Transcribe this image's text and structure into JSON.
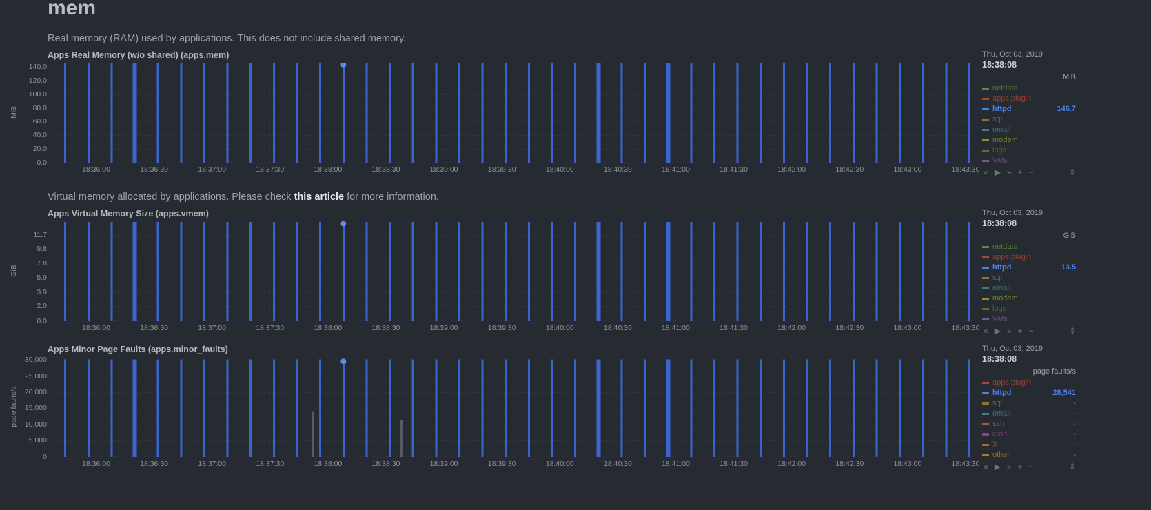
{
  "page": {
    "title": "mem"
  },
  "colors": {
    "background": "#262b31",
    "spike_blue": "#3d64ce",
    "selected_dot": "#5f8ce8",
    "grid": "#3a3f45",
    "axis_text": "#8f9398"
  },
  "x_axis": {
    "start": "18:35:37",
    "end": "18:43:35",
    "labels": [
      "18:36:00",
      "18:36:30",
      "18:37:00",
      "18:37:30",
      "18:38:00",
      "18:38:30",
      "18:39:00",
      "18:39:30",
      "18:40:00",
      "18:40:30",
      "18:41:00",
      "18:41:30",
      "18:42:00",
      "18:42:30",
      "18:43:00",
      "18:43:30"
    ],
    "wide_spike_times": [
      "18:36:20",
      "18:40:20",
      "18:40:56"
    ]
  },
  "selection": {
    "time": "18:38:08"
  },
  "toolbar": {
    "icons": [
      {
        "name": "pan-backward-icon",
        "glyph": "«"
      },
      {
        "name": "play-icon",
        "glyph": "▶"
      },
      {
        "name": "pan-forward-icon",
        "glyph": "»"
      },
      {
        "name": "zoom-in-icon",
        "glyph": "+"
      },
      {
        "name": "zoom-out-icon",
        "glyph": "−"
      }
    ],
    "resize": {
      "name": "resize-handle-icon",
      "glyph": "⇕"
    }
  },
  "chart_data": [
    {
      "type": "line",
      "title": "Apps Real Memory (w/o shared) (apps.mem)",
      "description": {
        "before": "Real memory (RAM) used by applications. This does not include shared memory.",
        "link": "",
        "after": ""
      },
      "unit": "MiB",
      "y_axis_label": "MiB",
      "y_max": 147,
      "y_ticks": [
        {
          "label": "140.0",
          "value": 140
        },
        {
          "label": "120.0",
          "value": 120
        },
        {
          "label": "100.0",
          "value": 100
        },
        {
          "label": "80.0",
          "value": 80
        },
        {
          "label": "60.0",
          "value": 60
        },
        {
          "label": "40.0",
          "value": 40
        },
        {
          "label": "20.0",
          "value": 20
        },
        {
          "label": "0.0",
          "value": 0
        }
      ],
      "date_label": "Thu, Oct 03, 2019",
      "time_label": "18:38:08",
      "series": [
        {
          "name": "httpd",
          "color": "#3d64ce",
          "baseline_value": 0,
          "peak_value": 146.7,
          "spike_times": [
            "18:35:44",
            "18:35:56",
            "18:36:08",
            "18:36:20",
            "18:36:32",
            "18:36:44",
            "18:36:56",
            "18:37:08",
            "18:37:20",
            "18:37:32",
            "18:37:44",
            "18:37:56",
            "18:38:08",
            "18:38:20",
            "18:38:32",
            "18:38:44",
            "18:38:56",
            "18:39:08",
            "18:39:20",
            "18:39:32",
            "18:39:44",
            "18:39:56",
            "18:40:08",
            "18:40:20",
            "18:40:32",
            "18:40:44",
            "18:40:56",
            "18:41:08",
            "18:41:20",
            "18:41:32",
            "18:41:44",
            "18:41:56",
            "18:42:08",
            "18:42:20",
            "18:42:32",
            "18:42:44",
            "18:42:56",
            "18:43:08",
            "18:43:20",
            "18:43:32"
          ]
        }
      ],
      "legend": [
        {
          "name": "netdata",
          "color": "#5d8b37",
          "value": ""
        },
        {
          "name": "apps.plugin",
          "color": "#a5473c",
          "value": ""
        },
        {
          "name": "httpd",
          "color": "#4d7fea",
          "value": "146.7",
          "selected": true
        },
        {
          "name": "sql",
          "color": "#96702f",
          "value": ""
        },
        {
          "name": "email",
          "color": "#3f7f86",
          "value": ""
        },
        {
          "name": "modem",
          "color": "#87992e",
          "value": ""
        },
        {
          "name": "logs",
          "color": "#6b672f",
          "value": ""
        },
        {
          "name": "VMs",
          "color": "#7e568c",
          "value": ""
        }
      ]
    },
    {
      "type": "line",
      "title": "Apps Virtual Memory Size (apps.vmem)",
      "description": {
        "before": "Virtual memory allocated by applications. Please check ",
        "link": "this article",
        "after": " for more information."
      },
      "unit": "GiB",
      "y_axis_label": "GiB",
      "y_max": 13.6,
      "y_ticks": [
        {
          "label": "11.7",
          "value": 11.7
        },
        {
          "label": "9.8",
          "value": 9.8
        },
        {
          "label": "7.8",
          "value": 7.8
        },
        {
          "label": "5.9",
          "value": 5.9
        },
        {
          "label": "3.9",
          "value": 3.9
        },
        {
          "label": "2.0",
          "value": 2.0
        },
        {
          "label": "0.0",
          "value": 0
        }
      ],
      "date_label": "Thu, Oct 03, 2019",
      "time_label": "18:38:08",
      "series": [
        {
          "name": "httpd",
          "color": "#3d64ce",
          "baseline_value": 0,
          "peak_value": 13.5,
          "spike_times_same_as": 0
        }
      ],
      "legend": [
        {
          "name": "netdata",
          "color": "#5d8b37",
          "value": ""
        },
        {
          "name": "apps.plugin",
          "color": "#a5473c",
          "value": ""
        },
        {
          "name": "httpd",
          "color": "#4d7fea",
          "value": "13.5",
          "selected": true
        },
        {
          "name": "sql",
          "color": "#96702f",
          "value": ""
        },
        {
          "name": "email",
          "color": "#3f7f86",
          "value": ""
        },
        {
          "name": "modem",
          "color": "#87992e",
          "value": ""
        },
        {
          "name": "logs",
          "color": "#6b672f",
          "value": ""
        },
        {
          "name": "VMs",
          "color": "#7e568c",
          "value": ""
        }
      ]
    },
    {
      "type": "line",
      "title": "Apps Minor Page Faults (apps.minor_faults)",
      "unit": "page faults/s",
      "y_axis_label": "page faults/s",
      "y_max": 31000,
      "y_ticks": [
        {
          "label": "30,000",
          "value": 30000
        },
        {
          "label": "25,000",
          "value": 25000
        },
        {
          "label": "20,000",
          "value": 20000
        },
        {
          "label": "15,000",
          "value": 15000
        },
        {
          "label": "10,000",
          "value": 10000
        },
        {
          "label": "5,000",
          "value": 5000
        },
        {
          "label": "0",
          "value": 0
        }
      ],
      "date_label": "Thu, Oct 03, 2019",
      "time_label": "18:38:08",
      "series": [
        {
          "name": "httpd",
          "color": "#3d64ce",
          "baseline_value": 0,
          "peak_value": 30200,
          "spike_times_same_as": 0
        },
        {
          "name": "other-dimensions",
          "color": "#565b62",
          "spikes": [
            {
              "time": "18:37:52",
              "value": 14000
            },
            {
              "time": "18:38:38",
              "value": 11500
            }
          ]
        }
      ],
      "legend": [
        {
          "name": "apps.plugin",
          "color": "#a5473c",
          "value": "-"
        },
        {
          "name": "httpd",
          "color": "#4d7fea",
          "value": "28,541",
          "selected": true
        },
        {
          "name": "sql",
          "color": "#96702f",
          "value": "-"
        },
        {
          "name": "email",
          "color": "#3f7f86",
          "value": "-"
        },
        {
          "name": "ssh",
          "color": "#a85a50",
          "value": "-"
        },
        {
          "name": "cron",
          "color": "#8f3f8f",
          "value": "-"
        },
        {
          "name": "X",
          "color": "#a06a28",
          "value": "-"
        },
        {
          "name": "other",
          "color": "#a87a30",
          "value": "-"
        }
      ]
    }
  ]
}
